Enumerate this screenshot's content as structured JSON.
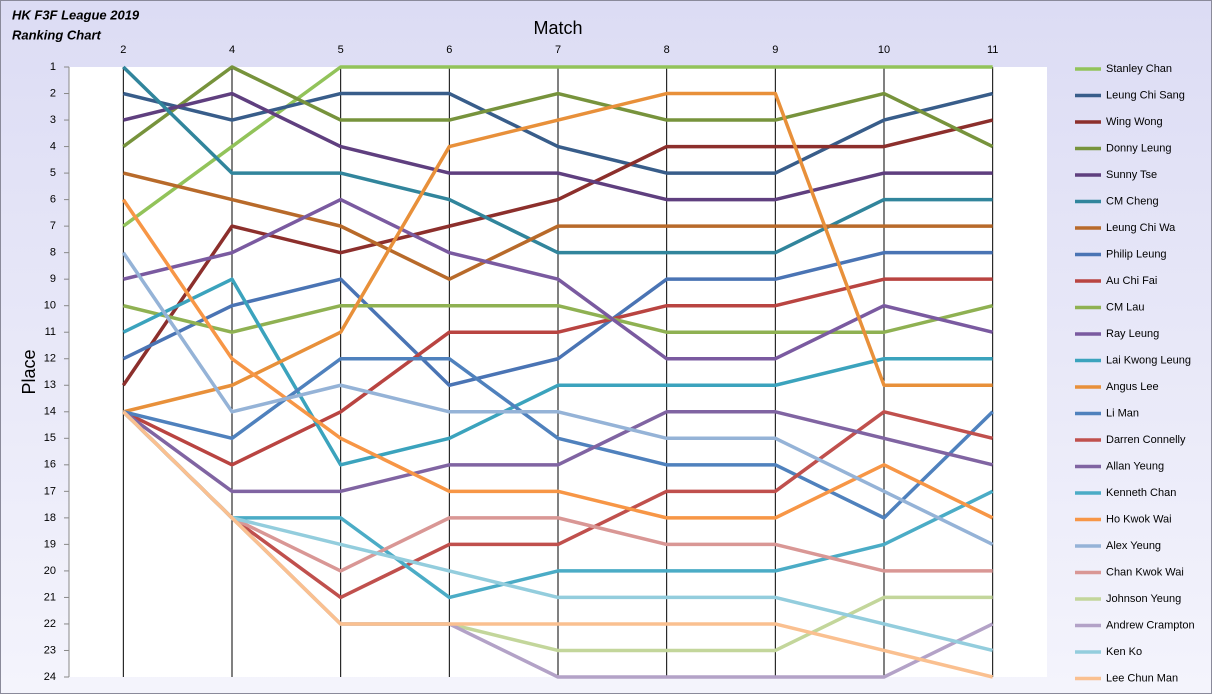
{
  "chart_data": {
    "type": "line",
    "title": "HK F3F League 2019",
    "subtitle": "Ranking Chart",
    "x_label": "Match",
    "y_label": "Place",
    "categories": [
      "2",
      "4",
      "5",
      "6",
      "7",
      "8",
      "9",
      "10",
      "11"
    ],
    "ylim": [
      1,
      24
    ],
    "y_reversed": true,
    "yticks": [
      1,
      2,
      3,
      4,
      5,
      6,
      7,
      8,
      9,
      10,
      11,
      12,
      13,
      14,
      15,
      16,
      17,
      18,
      19,
      20,
      21,
      22,
      23,
      24
    ],
    "x_grid": true,
    "legend": "right",
    "series": [
      {
        "name": "Stanley Chan",
        "color": "#92c35a",
        "values": [
          7,
          4,
          1,
          1,
          1,
          1,
          1,
          1,
          1
        ]
      },
      {
        "name": "Leung Chi Sang",
        "color": "#385d8a",
        "values": [
          2,
          3,
          2,
          2,
          4,
          5,
          5,
          3,
          2
        ]
      },
      {
        "name": "Wing Wong",
        "color": "#8c2f2c",
        "values": [
          13,
          7,
          8,
          7,
          6,
          4,
          4,
          4,
          3
        ]
      },
      {
        "name": "Donny Leung",
        "color": "#77933c",
        "values": [
          4,
          1,
          3,
          3,
          2,
          3,
          3,
          2,
          4
        ]
      },
      {
        "name": "Sunny Tse",
        "color": "#5f3f7f",
        "values": [
          3,
          2,
          4,
          5,
          5,
          6,
          6,
          5,
          5
        ]
      },
      {
        "name": "CM Cheng",
        "color": "#31859c",
        "values": [
          1,
          5,
          5,
          6,
          8,
          8,
          8,
          6,
          6
        ]
      },
      {
        "name": "Leung Chi Wa",
        "color": "#b86a2a",
        "values": [
          5,
          6,
          7,
          9,
          7,
          7,
          7,
          7,
          7
        ]
      },
      {
        "name": "Philip Leung",
        "color": "#4a74b4",
        "values": [
          12,
          10,
          9,
          13,
          12,
          9,
          9,
          8,
          8
        ]
      },
      {
        "name": "Au Chi Fai",
        "color": "#b94441",
        "values": [
          14,
          16,
          14,
          11,
          11,
          10,
          10,
          9,
          9
        ]
      },
      {
        "name": "CM Lau",
        "color": "#8fb152",
        "values": [
          10,
          11,
          10,
          10,
          10,
          11,
          11,
          11,
          10
        ]
      },
      {
        "name": "Ray Leung",
        "color": "#7a5aa0",
        "values": [
          9,
          8,
          6,
          8,
          9,
          12,
          12,
          10,
          11
        ]
      },
      {
        "name": "Lai Kwong Leung",
        "color": "#3ba3bd",
        "values": [
          11,
          9,
          16,
          15,
          13,
          13,
          13,
          12,
          12
        ]
      },
      {
        "name": "Angus Lee",
        "color": "#e8903a",
        "values": [
          14,
          13,
          11,
          4,
          3,
          2,
          2,
          13,
          13
        ]
      },
      {
        "name": "Li Man",
        "color": "#4f81bd",
        "values": [
          14,
          15,
          12,
          12,
          15,
          16,
          16,
          18,
          14
        ]
      },
      {
        "name": "Darren Connelly",
        "color": "#c0504d",
        "values": [
          14,
          18,
          21,
          19,
          19,
          17,
          17,
          14,
          15
        ]
      },
      {
        "name": "Allan Yeung",
        "color": "#8064a2",
        "values": [
          14,
          17,
          17,
          16,
          16,
          14,
          14,
          15,
          16
        ]
      },
      {
        "name": "Kenneth Chan",
        "color": "#4bacc6",
        "values": [
          14,
          18,
          18,
          21,
          20,
          20,
          20,
          19,
          17
        ]
      },
      {
        "name": "Ho Kwok Wai",
        "color": "#f79646",
        "values": [
          6,
          12,
          15,
          17,
          17,
          18,
          18,
          16,
          18
        ]
      },
      {
        "name": "Alex Yeung",
        "color": "#95b3d7",
        "values": [
          8,
          14,
          13,
          14,
          14,
          15,
          15,
          17,
          19
        ]
      },
      {
        "name": "Chan Kwok Wai",
        "color": "#d99795",
        "values": [
          14,
          18,
          20,
          18,
          18,
          19,
          19,
          20,
          20
        ]
      },
      {
        "name": "Johnson Yeung",
        "color": "#c3d69b",
        "values": [
          14,
          18,
          22,
          22,
          23,
          23,
          23,
          21,
          21
        ]
      },
      {
        "name": "Andrew Crampton",
        "color": "#b3a2c7",
        "values": [
          14,
          18,
          22,
          22,
          24,
          24,
          24,
          24,
          22
        ]
      },
      {
        "name": "Ken Ko",
        "color": "#93cddd",
        "values": [
          14,
          18,
          19,
          20,
          21,
          21,
          21,
          22,
          23
        ]
      },
      {
        "name": "Lee Chun Man",
        "color": "#fac090",
        "values": [
          14,
          18,
          22,
          22,
          22,
          22,
          22,
          23,
          24
        ]
      }
    ]
  }
}
